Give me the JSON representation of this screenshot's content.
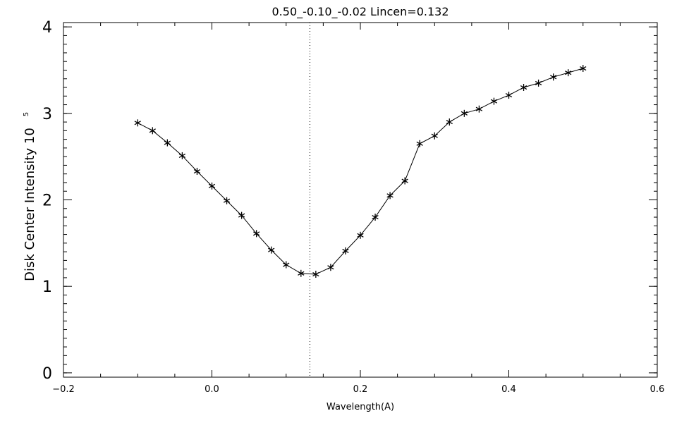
{
  "chart_data": {
    "type": "line",
    "title": "0.50_-0.10_-0.02   Lincen=0.132",
    "xlabel": "Wavelength(A)",
    "ylabel_main": "Disk Center Intensity 10",
    "ylabel_exp": "5",
    "xlim": [
      -0.2,
      0.6
    ],
    "ylim": [
      -0.05,
      4.05
    ],
    "xticks": [
      -0.2,
      0.0,
      0.2,
      0.4,
      0.6
    ],
    "xtick_labels": [
      "−0.2",
      "0.0",
      "0.2",
      "0.4",
      "0.6"
    ],
    "yticks": [
      0,
      1,
      2,
      3,
      4
    ],
    "ytick_labels": [
      "0",
      "1",
      "2",
      "3",
      "4"
    ],
    "vline_x": 0.132,
    "marker": "asterisk",
    "x": [
      -0.1,
      -0.08,
      -0.06,
      -0.04,
      -0.02,
      0.0,
      0.02,
      0.04,
      0.06,
      0.08,
      0.1,
      0.12,
      0.14,
      0.16,
      0.18,
      0.2,
      0.22,
      0.24,
      0.26,
      0.28,
      0.3,
      0.32,
      0.34,
      0.36,
      0.38,
      0.4,
      0.42,
      0.44,
      0.46,
      0.48,
      0.5
    ],
    "y": [
      2.89,
      2.8,
      2.66,
      2.51,
      2.33,
      2.16,
      1.99,
      1.82,
      1.61,
      1.42,
      1.25,
      1.15,
      1.14,
      1.22,
      1.41,
      1.59,
      1.8,
      2.05,
      2.22,
      2.65,
      2.74,
      2.9,
      3.0,
      3.05,
      3.14,
      3.21,
      3.3,
      3.35,
      3.42,
      3.47,
      3.52
    ],
    "grid": false
  }
}
